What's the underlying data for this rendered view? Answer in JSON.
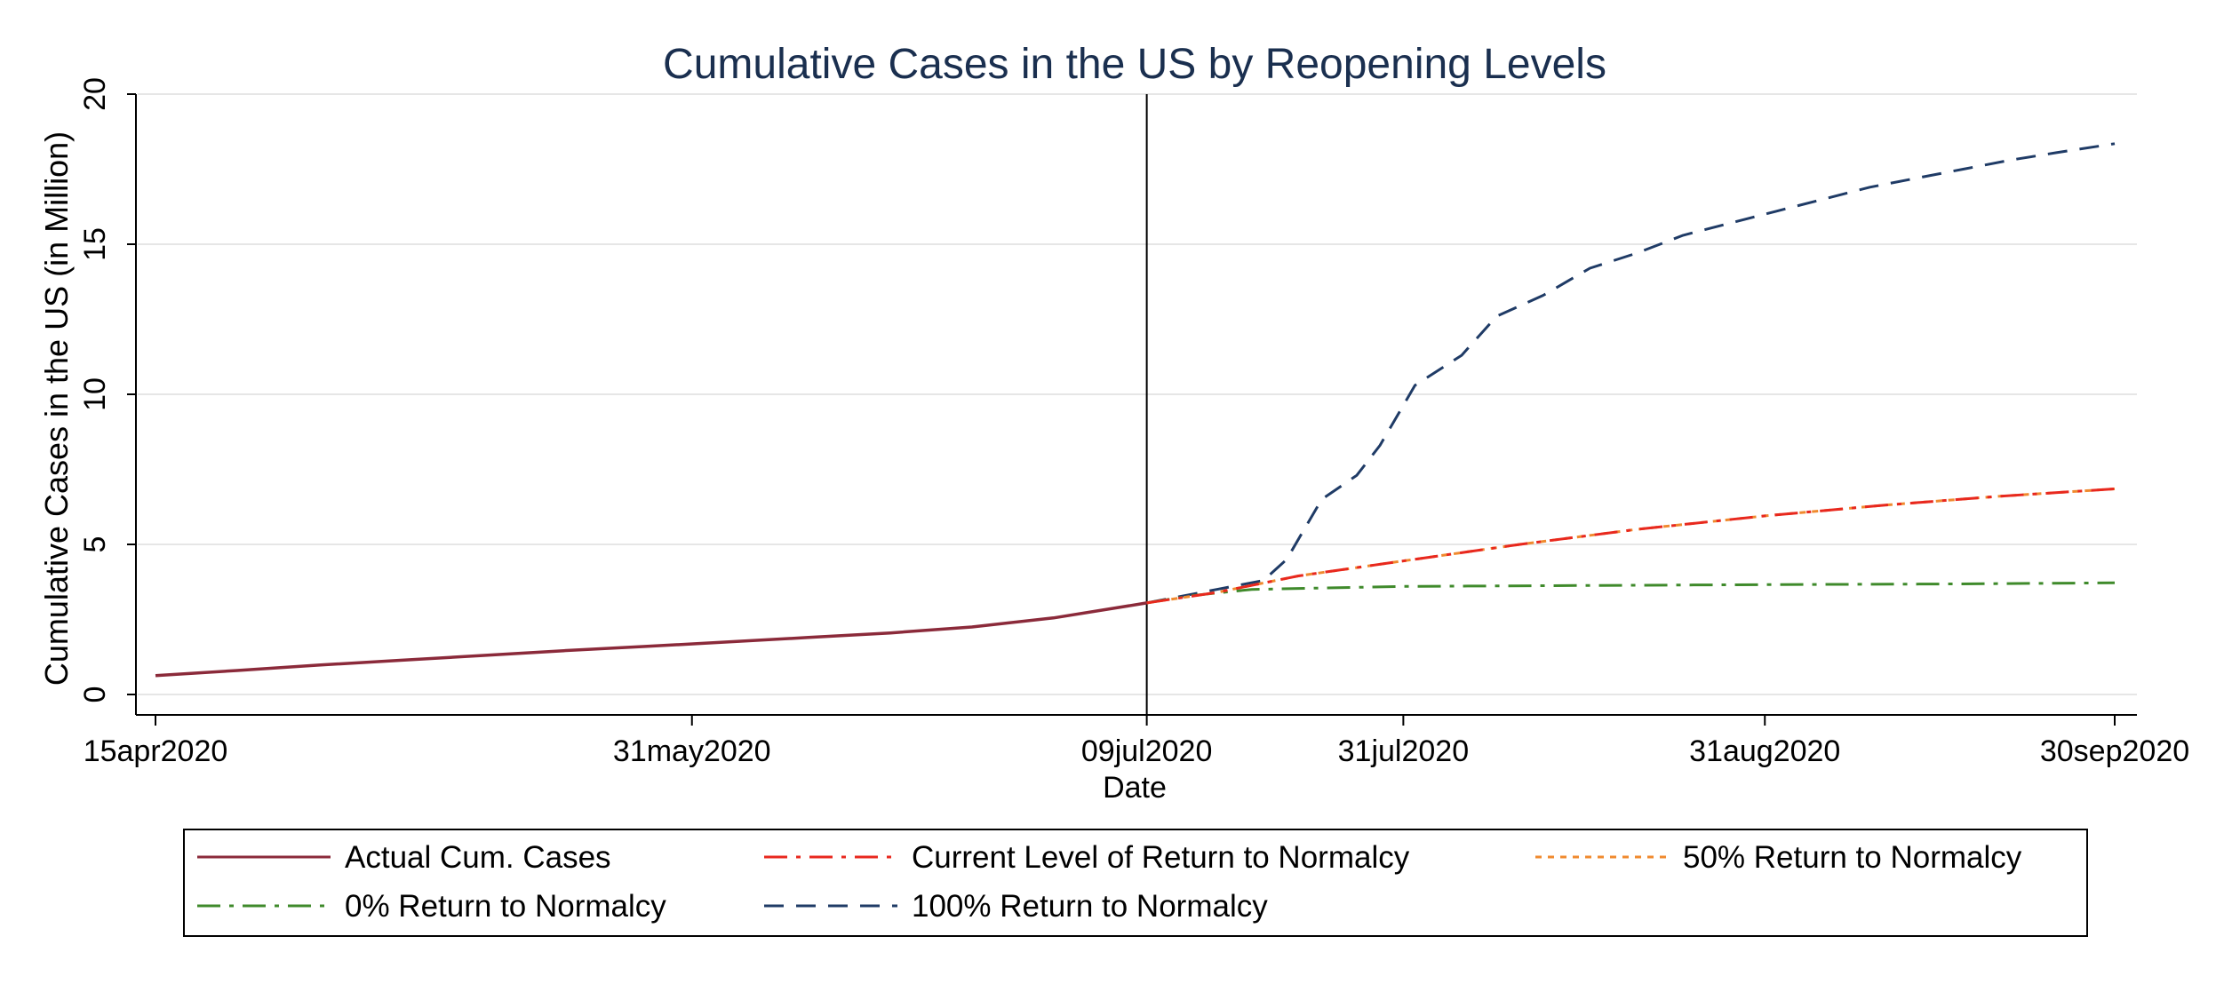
{
  "chart_data": {
    "type": "line",
    "title": "Cumulative Cases in the US by Reopening Levels",
    "xlabel": "Date",
    "ylabel": "Cumulative Cases in the US (in Million)",
    "x_axis_type": "date",
    "xlim": [
      "2020-04-15",
      "2020-09-30"
    ],
    "ylim": [
      0,
      20
    ],
    "x_ticks": [
      {
        "date": "2020-04-15",
        "label": "15apr2020"
      },
      {
        "date": "2020-05-31",
        "label": "31may2020"
      },
      {
        "date": "2020-07-09",
        "label": "09jul2020"
      },
      {
        "date": "2020-07-31",
        "label": "31jul2020"
      },
      {
        "date": "2020-08-31",
        "label": "31aug2020"
      },
      {
        "date": "2020-09-30",
        "label": "30sep2020"
      }
    ],
    "y_ticks": [
      0,
      5,
      10,
      15,
      20
    ],
    "grid": true,
    "vertical_line": "2020-07-09",
    "legend_position": "bottom",
    "series": [
      {
        "name": "Actual Cum. Cases",
        "color": "#8b2a3a",
        "style": "solid",
        "points": [
          [
            "2020-04-15",
            0.63
          ],
          [
            "2020-04-22",
            0.8
          ],
          [
            "2020-04-29",
            0.98
          ],
          [
            "2020-05-06",
            1.14
          ],
          [
            "2020-05-13",
            1.3
          ],
          [
            "2020-05-20",
            1.46
          ],
          [
            "2020-05-27",
            1.6
          ],
          [
            "2020-06-03",
            1.75
          ],
          [
            "2020-06-10",
            1.9
          ],
          [
            "2020-06-17",
            2.05
          ],
          [
            "2020-06-24",
            2.25
          ],
          [
            "2020-07-01",
            2.55
          ],
          [
            "2020-07-09",
            3.05
          ]
        ]
      },
      {
        "name": "Current Level of Return to Normalcy",
        "color": "#e8281e",
        "style": "dashdot",
        "points": [
          [
            "2020-07-09",
            3.05
          ],
          [
            "2020-07-15",
            3.4
          ],
          [
            "2020-07-22",
            3.95
          ],
          [
            "2020-07-31",
            4.45
          ],
          [
            "2020-08-10",
            5.0
          ],
          [
            "2020-08-20",
            5.5
          ],
          [
            "2020-08-31",
            5.95
          ],
          [
            "2020-09-10",
            6.3
          ],
          [
            "2020-09-20",
            6.6
          ],
          [
            "2020-09-30",
            6.85
          ]
        ]
      },
      {
        "name": "50% Return to Normalcy",
        "color": "#f08a2e",
        "style": "dotted",
        "points": [
          [
            "2020-07-09",
            3.05
          ],
          [
            "2020-07-15",
            3.4
          ],
          [
            "2020-07-22",
            3.95
          ],
          [
            "2020-07-31",
            4.45
          ],
          [
            "2020-08-10",
            5.0
          ],
          [
            "2020-08-20",
            5.5
          ],
          [
            "2020-08-31",
            5.95
          ],
          [
            "2020-09-10",
            6.3
          ],
          [
            "2020-09-20",
            6.6
          ],
          [
            "2020-09-30",
            6.85
          ]
        ]
      },
      {
        "name": "0% Return to Normalcy",
        "color": "#3f8a2b",
        "style": "dashdot",
        "points": [
          [
            "2020-07-09",
            3.05
          ],
          [
            "2020-07-13",
            3.3
          ],
          [
            "2020-07-18",
            3.5
          ],
          [
            "2020-07-31",
            3.6
          ],
          [
            "2020-08-15",
            3.63
          ],
          [
            "2020-08-31",
            3.66
          ],
          [
            "2020-09-15",
            3.68
          ],
          [
            "2020-09-30",
            3.72
          ]
        ]
      },
      {
        "name": "100% Return to Normalcy",
        "color": "#1f3b66",
        "style": "dashed",
        "points": [
          [
            "2020-07-09",
            3.05
          ],
          [
            "2020-07-15",
            3.5
          ],
          [
            "2020-07-19",
            3.8
          ],
          [
            "2020-07-21",
            4.5
          ],
          [
            "2020-07-24",
            6.5
          ],
          [
            "2020-07-27",
            7.3
          ],
          [
            "2020-07-29",
            8.3
          ],
          [
            "2020-08-01",
            10.3
          ],
          [
            "2020-08-05",
            11.3
          ],
          [
            "2020-08-08",
            12.6
          ],
          [
            "2020-08-12",
            13.3
          ],
          [
            "2020-08-16",
            14.2
          ],
          [
            "2020-08-20",
            14.7
          ],
          [
            "2020-08-24",
            15.3
          ],
          [
            "2020-08-28",
            15.7
          ],
          [
            "2020-09-01",
            16.1
          ],
          [
            "2020-09-05",
            16.5
          ],
          [
            "2020-09-09",
            16.9
          ],
          [
            "2020-09-13",
            17.2
          ],
          [
            "2020-09-17",
            17.5
          ],
          [
            "2020-09-21",
            17.8
          ],
          [
            "2020-09-25",
            18.05
          ],
          [
            "2020-09-30",
            18.35
          ]
        ]
      }
    ]
  }
}
